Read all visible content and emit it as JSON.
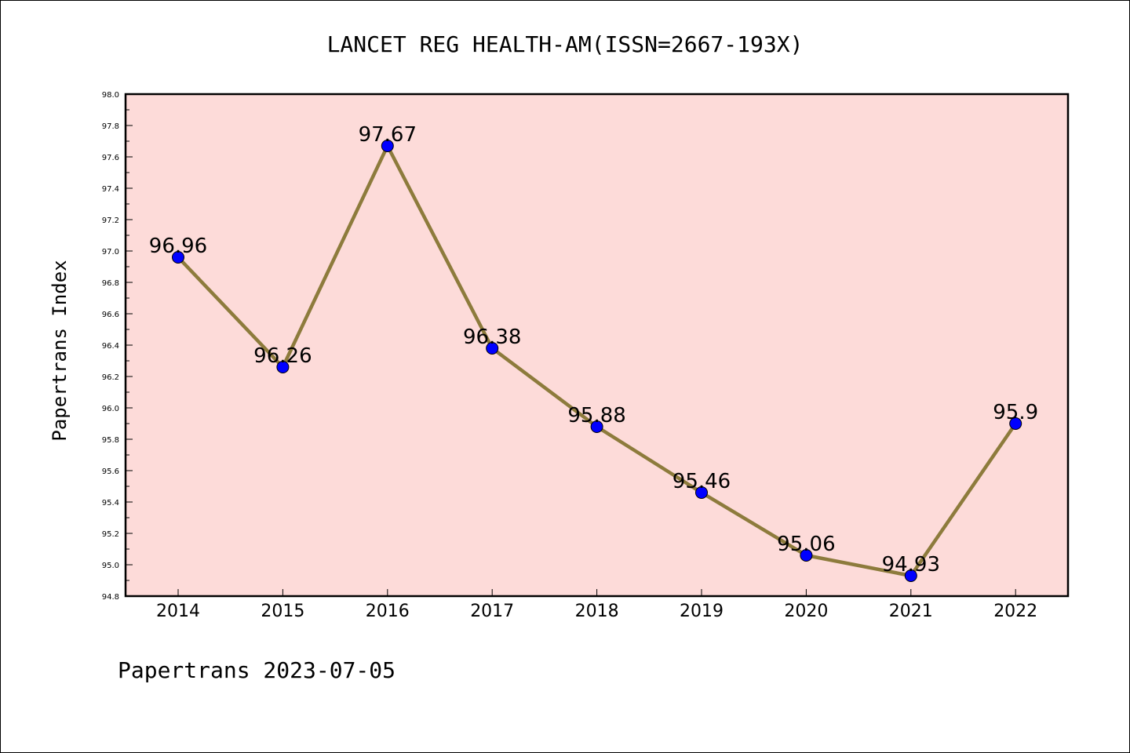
{
  "chart_data": {
    "type": "line",
    "title": "LANCET REG HEALTH-AM(ISSN=2667-193X)",
    "ylabel": "Papertrans Index",
    "xlabel": "",
    "categories": [
      "2014",
      "2015",
      "2016",
      "2017",
      "2018",
      "2019",
      "2020",
      "2021",
      "2022"
    ],
    "series": [
      {
        "values": [
          96.96,
          96.26,
          97.67,
          96.38,
          95.88,
          95.46,
          95.06,
          94.93,
          95.9
        ]
      }
    ],
    "data_labels": [
      "96.96",
      "96.26",
      "97.67",
      "96.38",
      "95.88",
      "95.46",
      "95.06",
      "94.93",
      "95.9"
    ],
    "ylim": [
      94.8,
      98.0
    ],
    "yticks": [
      "94.8",
      "95.0",
      "95.2",
      "95.4",
      "95.6",
      "95.8",
      "96.0",
      "96.2",
      "96.4",
      "96.6",
      "96.8",
      "97.0",
      "97.2",
      "97.4",
      "97.6",
      "97.8",
      "98.0"
    ],
    "grid": false,
    "legend": "none",
    "colors": {
      "plot_background": "#fddbd9",
      "line": "#8d7b3c",
      "marker": "#0000ff"
    }
  },
  "footer": "Papertrans 2023-07-05"
}
